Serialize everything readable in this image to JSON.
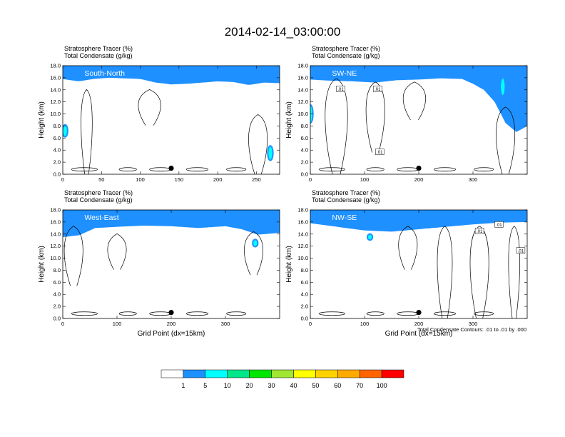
{
  "title": "2014-02-14_03:00:00",
  "footnote": "Total Condensate Contours: .01 to .01 by .000",
  "colors": {
    "bands": [
      "#ffffff",
      "#1e90ff",
      "#00ffff",
      "#00e68a",
      "#00e600",
      "#a0e632",
      "#ffff00",
      "#ffd200",
      "#ffaa00",
      "#ff6400",
      "#ff0000"
    ],
    "contour": "#000000",
    "marker": "#000000"
  },
  "chart_data": [
    {
      "type": "heatmap",
      "panel_title": "South-North",
      "header": [
        "Stratosphere Tracer   (%)",
        "Total Condensate   (g/kg)"
      ],
      "ylabel": "Height (km)",
      "xlabel": "",
      "xlim": [
        0,
        280
      ],
      "ylim": [
        0,
        18
      ],
      "x_ticks": [
        0,
        50,
        100,
        150,
        200,
        250
      ],
      "y_ticks": [
        "0.0",
        "2.0",
        "4.0",
        "6.0",
        "8.0",
        "10.0",
        "12.0",
        "14.0",
        "16.0",
        "18.0"
      ],
      "marker": {
        "x": 140,
        "y": 1.0
      },
      "tracer_base_km": [
        [
          0,
          15.8
        ],
        [
          20,
          15.4
        ],
        [
          40,
          15.8
        ],
        [
          60,
          16.0
        ],
        [
          80,
          15.9
        ],
        [
          100,
          15.8
        ],
        [
          120,
          15.2
        ],
        [
          140,
          14.9
        ],
        [
          160,
          15.0
        ],
        [
          180,
          15.2
        ],
        [
          200,
          15.4
        ],
        [
          220,
          15.3
        ],
        [
          240,
          14.8
        ],
        [
          260,
          15.2
        ],
        [
          280,
          15.1
        ]
      ],
      "contour_labels": []
    },
    {
      "type": "heatmap",
      "panel_title": "SW-NE",
      "header": [
        "Stratosphere Tracer   (%)",
        "Total Condensate   (g/kg)"
      ],
      "ylabel": "Height (km)",
      "xlabel": "",
      "xlim": [
        0,
        400
      ],
      "ylim": [
        0,
        18
      ],
      "x_ticks": [
        0,
        100,
        200,
        300
      ],
      "y_ticks": [
        "0.0",
        "2.0",
        "4.0",
        "6.0",
        "8.0",
        "10.0",
        "12.0",
        "14.0",
        "16.0",
        "18.0"
      ],
      "marker": {
        "x": 200,
        "y": 1.0
      },
      "tracer_base_km": [
        [
          0,
          15.7
        ],
        [
          40,
          15.5
        ],
        [
          80,
          15.4
        ],
        [
          120,
          15.2
        ],
        [
          160,
          15.6
        ],
        [
          200,
          15.7
        ],
        [
          240,
          15.9
        ],
        [
          280,
          15.8
        ],
        [
          300,
          15.0
        ],
        [
          320,
          14.0
        ],
        [
          340,
          12.0
        ],
        [
          360,
          8.5
        ],
        [
          380,
          7.0
        ],
        [
          400,
          8.0
        ]
      ],
      "contour_labels": [
        ".01",
        ".01",
        ".01"
      ]
    },
    {
      "type": "heatmap",
      "panel_title": "West-East",
      "header": [
        "Stratosphere Tracer   (%)",
        "Total Condensate   (g/kg)"
      ],
      "ylabel": "Height (km)",
      "xlabel": "Grid Point (dx=15km)",
      "xlim": [
        0,
        400
      ],
      "ylim": [
        0,
        18
      ],
      "x_ticks": [
        0,
        100,
        200,
        300
      ],
      "y_ticks": [
        "0.0",
        "2.0",
        "4.0",
        "6.0",
        "8.0",
        "10.0",
        "12.0",
        "14.0",
        "16.0",
        "18.0"
      ],
      "marker": {
        "x": 200,
        "y": 1.0
      },
      "tracer_base_km": [
        [
          0,
          13.5
        ],
        [
          30,
          13.8
        ],
        [
          60,
          15.0
        ],
        [
          100,
          15.2
        ],
        [
          150,
          15.4
        ],
        [
          200,
          15.3
        ],
        [
          250,
          15.0
        ],
        [
          300,
          15.3
        ],
        [
          330,
          14.8
        ],
        [
          360,
          13.9
        ],
        [
          400,
          14.2
        ]
      ],
      "contour_labels": []
    },
    {
      "type": "heatmap",
      "panel_title": "NW-SE",
      "header": [
        "Stratosphere Tracer   (%)",
        "Total Condensate   (g/kg)"
      ],
      "ylabel": "Height (km)",
      "xlabel": "Grid Point (dx=15km)",
      "xlim": [
        0,
        400
      ],
      "ylim": [
        0,
        18
      ],
      "x_ticks": [
        0,
        100,
        200,
        300
      ],
      "y_ticks": [
        "0.0",
        "2.0",
        "4.0",
        "6.0",
        "8.0",
        "10.0",
        "12.0",
        "14.0",
        "16.0",
        "18.0"
      ],
      "marker": {
        "x": 200,
        "y": 1.0
      },
      "tracer_base_km": [
        [
          0,
          15.8
        ],
        [
          50,
          15.2
        ],
        [
          100,
          14.6
        ],
        [
          150,
          14.4
        ],
        [
          200,
          14.8
        ],
        [
          250,
          15.2
        ],
        [
          300,
          15.6
        ],
        [
          350,
          15.9
        ],
        [
          400,
          16.0
        ]
      ],
      "contour_labels": [
        ".01",
        ".01",
        ".01"
      ]
    }
  ],
  "colorbar": {
    "labels": [
      "1",
      "5",
      "10",
      "20",
      "30",
      "40",
      "50",
      "60",
      "70",
      "100"
    ]
  }
}
